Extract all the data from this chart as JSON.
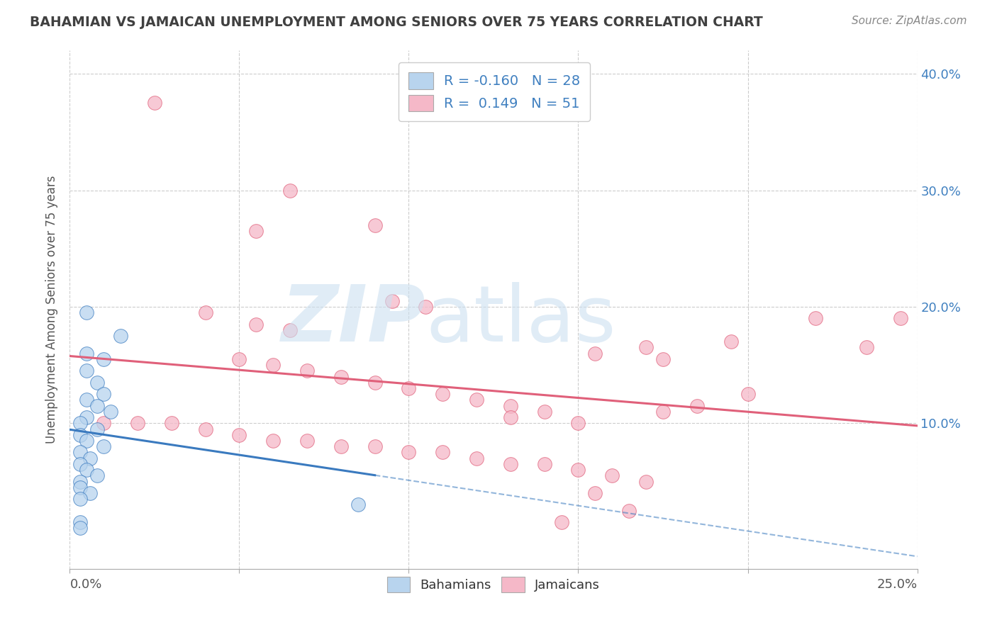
{
  "title": "BAHAMIAN VS JAMAICAN UNEMPLOYMENT AMONG SENIORS OVER 75 YEARS CORRELATION CHART",
  "source": "Source: ZipAtlas.com",
  "ylabel": "Unemployment Among Seniors over 75 years",
  "xlim": [
    0.0,
    0.25
  ],
  "ylim": [
    -0.025,
    0.42
  ],
  "legend_r1": "R = -0.160   N = 28",
  "legend_r2": "R =  0.149   N = 51",
  "bahamian_color": "#b8d4ee",
  "jamaican_color": "#f5b8c8",
  "bahamian_line_color": "#3a7abf",
  "jamaican_line_color": "#e0607a",
  "grid_color": "#cccccc",
  "title_color": "#404040",
  "source_color": "#888888",
  "blue_text_color": "#4080c0",
  "bahamian_points": [
    [
      0.005,
      0.195
    ],
    [
      0.015,
      0.175
    ],
    [
      0.005,
      0.16
    ],
    [
      0.01,
      0.155
    ],
    [
      0.005,
      0.145
    ],
    [
      0.008,
      0.135
    ],
    [
      0.01,
      0.125
    ],
    [
      0.005,
      0.12
    ],
    [
      0.008,
      0.115
    ],
    [
      0.012,
      0.11
    ],
    [
      0.005,
      0.105
    ],
    [
      0.003,
      0.1
    ],
    [
      0.008,
      0.095
    ],
    [
      0.003,
      0.09
    ],
    [
      0.005,
      0.085
    ],
    [
      0.01,
      0.08
    ],
    [
      0.003,
      0.075
    ],
    [
      0.006,
      0.07
    ],
    [
      0.003,
      0.065
    ],
    [
      0.005,
      0.06
    ],
    [
      0.008,
      0.055
    ],
    [
      0.003,
      0.05
    ],
    [
      0.003,
      0.045
    ],
    [
      0.006,
      0.04
    ],
    [
      0.003,
      0.035
    ],
    [
      0.085,
      0.03
    ],
    [
      0.003,
      0.015
    ],
    [
      0.003,
      0.01
    ]
  ],
  "jamaican_points": [
    [
      0.025,
      0.375
    ],
    [
      0.065,
      0.3
    ],
    [
      0.09,
      0.27
    ],
    [
      0.055,
      0.265
    ],
    [
      0.095,
      0.205
    ],
    [
      0.105,
      0.2
    ],
    [
      0.04,
      0.195
    ],
    [
      0.055,
      0.185
    ],
    [
      0.065,
      0.18
    ],
    [
      0.195,
      0.17
    ],
    [
      0.17,
      0.165
    ],
    [
      0.22,
      0.19
    ],
    [
      0.245,
      0.19
    ],
    [
      0.235,
      0.165
    ],
    [
      0.155,
      0.16
    ],
    [
      0.175,
      0.155
    ],
    [
      0.05,
      0.155
    ],
    [
      0.06,
      0.15
    ],
    [
      0.07,
      0.145
    ],
    [
      0.08,
      0.14
    ],
    [
      0.09,
      0.135
    ],
    [
      0.1,
      0.13
    ],
    [
      0.11,
      0.125
    ],
    [
      0.12,
      0.12
    ],
    [
      0.13,
      0.115
    ],
    [
      0.14,
      0.11
    ],
    [
      0.13,
      0.105
    ],
    [
      0.15,
      0.1
    ],
    [
      0.2,
      0.125
    ],
    [
      0.185,
      0.115
    ],
    [
      0.175,
      0.11
    ],
    [
      0.01,
      0.1
    ],
    [
      0.02,
      0.1
    ],
    [
      0.03,
      0.1
    ],
    [
      0.04,
      0.095
    ],
    [
      0.05,
      0.09
    ],
    [
      0.06,
      0.085
    ],
    [
      0.07,
      0.085
    ],
    [
      0.08,
      0.08
    ],
    [
      0.09,
      0.08
    ],
    [
      0.1,
      0.075
    ],
    [
      0.11,
      0.075
    ],
    [
      0.12,
      0.07
    ],
    [
      0.13,
      0.065
    ],
    [
      0.14,
      0.065
    ],
    [
      0.15,
      0.06
    ],
    [
      0.16,
      0.055
    ],
    [
      0.17,
      0.05
    ],
    [
      0.155,
      0.04
    ],
    [
      0.165,
      0.025
    ],
    [
      0.145,
      0.015
    ]
  ],
  "bah_trend": [
    -1.5,
    0.115
  ],
  "jam_trend": [
    0.32,
    0.115
  ]
}
